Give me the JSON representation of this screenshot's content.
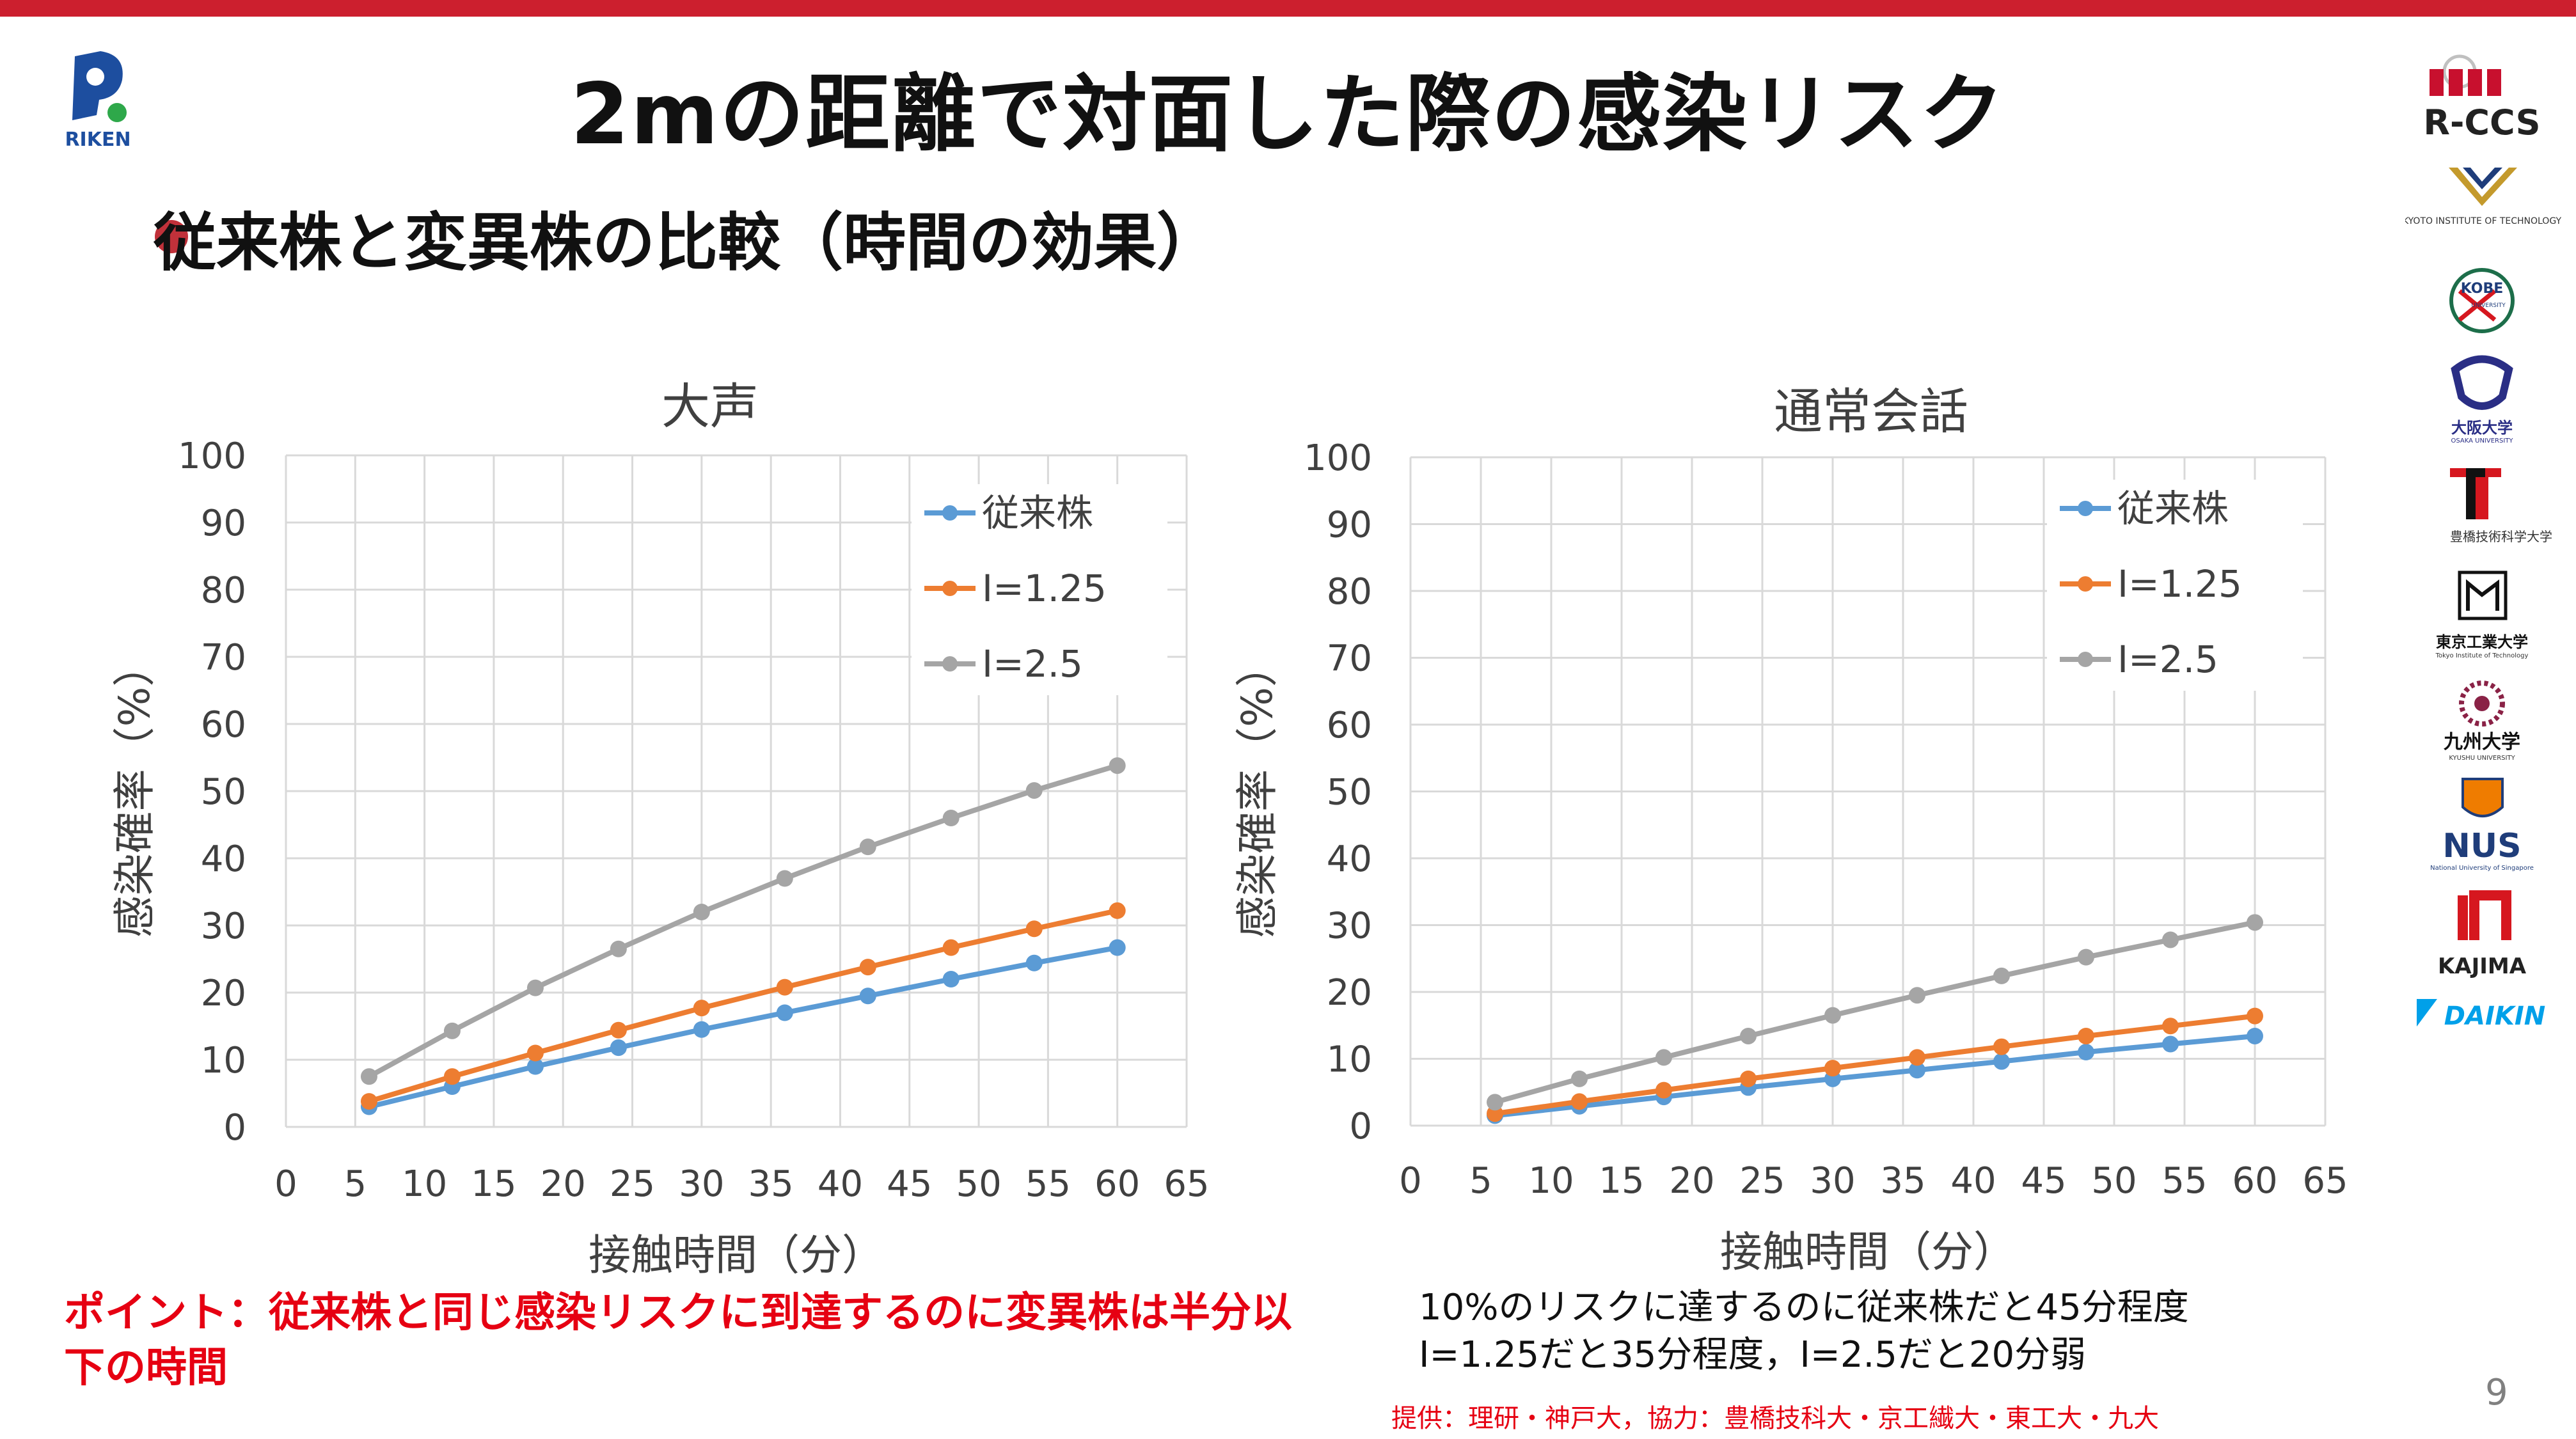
{
  "slide": {
    "title": "2mの距離で対面した際の感染リスク",
    "subtitle": "従来株と変異株の比較（時間の効果）",
    "point": "ポイント：従来株と同じ感染リスクに到達するのに変異株は半分以下の時間",
    "note_line1": "10%のリスクに達するのに従来株だと45分程度",
    "note_line2": "I=1.25だと35分程度，I=2.5だと20分弱",
    "credit": "提供：理研・神戸大，協力：豊橋技科大・京工繊大・東工大・九大",
    "page_number": "9"
  },
  "logos": {
    "riken": "RIKEN",
    "rccs": "R-CCS",
    "kyoto": "KYOTO INSTITUTE OF TECHNOLOGY",
    "kobe": "KOBE",
    "kobe_sub": "UNIVERSITY",
    "osaka": "大阪大学",
    "osaka_sub": "OSAKA UNIVERSITY",
    "toyohashi": "豊橋技術科学大学",
    "titech": "東京工業大学",
    "titech_sub": "Tokyo Institute of Technology",
    "kyushu": "九州大学",
    "kyushu_sub": "KYUSHU UNIVERSITY",
    "nus": "NUS",
    "nus_sub": "National University of Singapore",
    "kajima": "KAJIMA",
    "daikin": "DAIKIN"
  },
  "colors": {
    "conventional": "#5b9bd5",
    "i125": "#ed7d31",
    "i25": "#a5a5a5",
    "accent_red": "#cc1f2e"
  },
  "chart_data": [
    {
      "type": "line",
      "title": "大声",
      "xlabel": "接触時間（分）",
      "ylabel": "感染確率（%）",
      "xlim": [
        0,
        65
      ],
      "ylim": [
        0,
        100
      ],
      "xticks": [
        0,
        5,
        10,
        15,
        20,
        25,
        30,
        35,
        40,
        45,
        50,
        55,
        60,
        65
      ],
      "yticks": [
        0,
        10,
        20,
        30,
        40,
        50,
        60,
        70,
        80,
        90,
        100
      ],
      "grid": true,
      "legend": "top-right",
      "x": [
        6,
        12,
        18,
        24,
        30,
        36,
        42,
        48,
        54,
        60
      ],
      "series": [
        {
          "name": "従来株",
          "values": [
            3,
            6,
            9,
            11.8,
            14.5,
            17,
            19.5,
            22,
            24.4,
            26.7
          ]
        },
        {
          "name": "I=1.25",
          "values": [
            3.8,
            7.5,
            11,
            14.4,
            17.7,
            20.8,
            23.8,
            26.7,
            29.5,
            32.2
          ]
        },
        {
          "name": "I=2.5",
          "values": [
            7.5,
            14.3,
            20.7,
            26.5,
            32,
            37,
            41.7,
            46,
            50.1,
            53.8
          ]
        }
      ]
    },
    {
      "type": "line",
      "title": "通常会話",
      "xlabel": "接触時間（分）",
      "ylabel": "感染確率（%）",
      "xlim": [
        0,
        65
      ],
      "ylim": [
        0,
        100
      ],
      "xticks": [
        0,
        5,
        10,
        15,
        20,
        25,
        30,
        35,
        40,
        45,
        50,
        55,
        60,
        65
      ],
      "yticks": [
        0,
        10,
        20,
        30,
        40,
        50,
        60,
        70,
        80,
        90,
        100
      ],
      "grid": true,
      "legend": "top-right",
      "x": [
        6,
        12,
        18,
        24,
        30,
        36,
        42,
        48,
        54,
        60
      ],
      "series": [
        {
          "name": "従来株",
          "values": [
            1.5,
            2.9,
            4.3,
            5.7,
            7,
            8.3,
            9.6,
            11,
            12.2,
            13.4
          ]
        },
        {
          "name": "I=1.25",
          "values": [
            1.8,
            3.6,
            5.3,
            7,
            8.6,
            10.2,
            11.8,
            13.4,
            14.9,
            16.4
          ]
        },
        {
          "name": "I=2.5",
          "values": [
            3.5,
            7,
            10.2,
            13.4,
            16.5,
            19.5,
            22.4,
            25.2,
            27.8,
            30.4
          ]
        }
      ]
    }
  ]
}
